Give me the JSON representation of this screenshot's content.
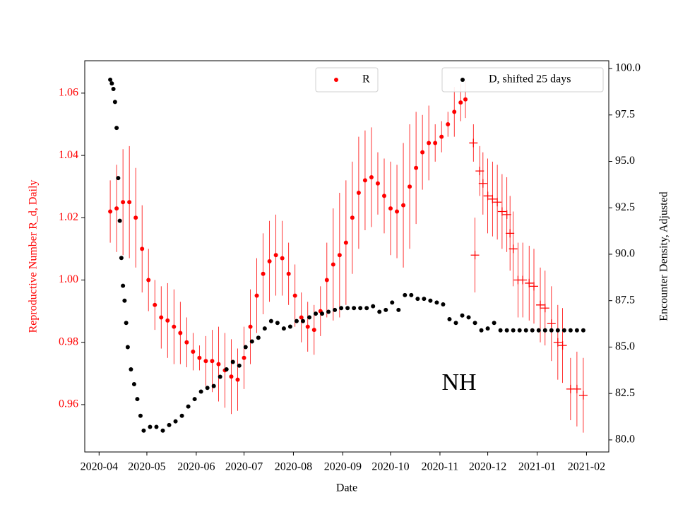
{
  "chart_data": {
    "type": "scatter",
    "xlabel": "Date",
    "ylabel": "Reproductive Number R_d, Daily",
    "y2label": "Encounter Density, Adjusted",
    "annotation": {
      "text": "NH",
      "x": "2020-11-13",
      "y": 0.9665
    },
    "xlim": [
      "2020-03-23",
      "2021-02-15"
    ],
    "xticks": [
      {
        "value": "2020-04-01",
        "label": "2020-04"
      },
      {
        "value": "2020-05-01",
        "label": "2020-05"
      },
      {
        "value": "2020-06-01",
        "label": "2020-06"
      },
      {
        "value": "2020-07-01",
        "label": "2020-07"
      },
      {
        "value": "2020-08-01",
        "label": "2020-08"
      },
      {
        "value": "2020-09-01",
        "label": "2020-09"
      },
      {
        "value": "2020-10-01",
        "label": "2020-10"
      },
      {
        "value": "2020-11-01",
        "label": "2020-11"
      },
      {
        "value": "2020-12-01",
        "label": "2020-12"
      },
      {
        "value": "2021-01-01",
        "label": "2021-01"
      },
      {
        "value": "2021-02-01",
        "label": "2021-02"
      }
    ],
    "ylim": [
      0.9448,
      1.0704
    ],
    "yticks": [
      0.96,
      0.98,
      {
        "value": 1,
        "label": "1.00"
      },
      1.02,
      1.04,
      1.06
    ],
    "ycolor": "red",
    "y2lim": [
      79.35,
      100.42
    ],
    "y2ticks": [
      {
        "value": 80,
        "label": "80.0"
      },
      82.5,
      {
        "value": 85,
        "label": "85.0"
      },
      87.5,
      {
        "value": 90,
        "label": "90.0"
      },
      92.5,
      {
        "value": 95,
        "label": "95.0"
      },
      97.5,
      {
        "value": 100,
        "label": "100.0"
      }
    ],
    "series": [
      {
        "name": "R",
        "color": "red",
        "marker": "o",
        "legend": "upper center",
        "x": [
          "2020-04-08",
          "2020-04-12",
          "2020-04-16",
          "2020-04-20",
          "2020-04-24",
          "2020-04-28",
          "2020-05-02",
          "2020-05-06",
          "2020-05-10",
          "2020-05-14",
          "2020-05-18",
          "2020-05-22",
          "2020-05-26",
          "2020-05-30",
          "2020-06-03",
          "2020-06-07",
          "2020-06-11",
          "2020-06-15",
          "2020-06-19",
          "2020-06-23",
          "2020-06-27",
          "2020-07-01",
          "2020-07-05",
          "2020-07-09",
          "2020-07-13",
          "2020-07-17",
          "2020-07-21",
          "2020-07-25",
          "2020-07-29",
          "2020-08-02",
          "2020-08-06",
          "2020-08-10",
          "2020-08-14",
          "2020-08-18",
          "2020-08-22",
          "2020-08-26",
          "2020-08-30",
          "2020-09-03",
          "2020-09-07",
          "2020-09-11",
          "2020-09-15",
          "2020-09-19",
          "2020-09-23",
          "2020-09-27",
          "2020-10-01",
          "2020-10-05",
          "2020-10-09",
          "2020-10-13",
          "2020-10-17",
          "2020-10-21",
          "2020-10-25",
          "2020-10-29",
          "2020-11-02",
          "2020-11-06",
          "2020-11-10",
          "2020-11-14",
          "2020-11-17"
        ],
        "values": [
          1.022,
          1.023,
          1.025,
          1.025,
          1.02,
          1.01,
          1.0,
          0.992,
          0.988,
          0.987,
          0.985,
          0.983,
          0.98,
          0.977,
          0.975,
          0.974,
          0.974,
          0.973,
          0.971,
          0.969,
          0.968,
          0.975,
          0.985,
          0.995,
          1.002,
          1.006,
          1.008,
          1.007,
          1.002,
          0.995,
          0.988,
          0.985,
          0.984,
          0.99,
          1.0,
          1.005,
          1.008,
          1.012,
          1.02,
          1.028,
          1.032,
          1.033,
          1.031,
          1.027,
          1.023,
          1.022,
          1.024,
          1.03,
          1.036,
          1.041,
          1.044,
          1.044,
          1.046,
          1.05,
          1.054,
          1.057,
          1.058
        ],
        "errors": [
          0.01,
          0.014,
          0.017,
          0.018,
          0.016,
          0.014,
          0.01,
          0.008,
          0.01,
          0.012,
          0.012,
          0.01,
          0.008,
          0.006,
          0.004,
          0.008,
          0.01,
          0.012,
          0.012,
          0.012,
          0.01,
          0.01,
          0.012,
          0.012,
          0.013,
          0.013,
          0.013,
          0.012,
          0.01,
          0.01,
          0.008,
          0.008,
          0.008,
          0.008,
          0.012,
          0.018,
          0.02,
          0.02,
          0.018,
          0.018,
          0.016,
          0.016,
          0.01,
          0.012,
          0.015,
          0.015,
          0.02,
          0.02,
          0.018,
          0.012,
          0.012,
          0.006,
          0.005,
          0.004,
          0.008,
          0.006,
          0.006
        ]
      },
      {
        "color": "red",
        "marker": "+",
        "x": [
          "2020-11-22",
          "2020-11-23",
          "2020-11-26",
          "2020-11-28",
          "2020-12-01",
          "2020-12-04",
          "2020-12-07",
          "2020-12-10",
          "2020-12-13",
          "2020-12-15",
          "2020-12-17",
          "2020-12-20",
          "2020-12-23",
          "2020-12-27",
          "2020-12-30",
          "2021-01-03",
          "2021-01-06",
          "2021-01-10",
          "2021-01-14",
          "2021-01-17",
          "2021-01-22",
          "2021-01-26",
          "2021-01-30"
        ],
        "values": [
          1.044,
          1.008,
          1.035,
          1.031,
          1.027,
          1.026,
          1.025,
          1.022,
          1.021,
          1.015,
          1.01,
          1.0,
          1.0,
          0.999,
          0.998,
          0.992,
          0.991,
          0.986,
          0.98,
          0.979,
          0.965,
          0.965,
          0.963
        ],
        "errors": [
          0.006,
          0.012,
          0.008,
          0.01,
          0.012,
          0.012,
          0.012,
          0.012,
          0.012,
          0.012,
          0.012,
          0.012,
          0.012,
          0.012,
          0.012,
          0.012,
          0.012,
          0.012,
          0.012,
          0.012,
          0.01,
          0.012,
          0.012
        ]
      },
      {
        "name": "D, shifted 25 days",
        "color": "black",
        "marker": "o",
        "axis": "y2",
        "legend": "upper right",
        "x": [
          "2020-04-08",
          "2020-04-09",
          "2020-04-10",
          "2020-04-11",
          "2020-04-12",
          "2020-04-13",
          "2020-04-14",
          "2020-04-15",
          "2020-04-16",
          "2020-04-17",
          "2020-04-18",
          "2020-04-19",
          "2020-04-21",
          "2020-04-23",
          "2020-04-25",
          "2020-04-27",
          "2020-04-29",
          "2020-05-03",
          "2020-05-07",
          "2020-05-11",
          "2020-05-15",
          "2020-05-19",
          "2020-05-23",
          "2020-05-27",
          "2020-05-31",
          "2020-06-04",
          "2020-06-08",
          "2020-06-12",
          "2020-06-16",
          "2020-06-20",
          "2020-06-24",
          "2020-06-28",
          "2020-07-02",
          "2020-07-06",
          "2020-07-10",
          "2020-07-14",
          "2020-07-18",
          "2020-07-22",
          "2020-07-26",
          "2020-07-30",
          "2020-08-03",
          "2020-08-07",
          "2020-08-11",
          "2020-08-15",
          "2020-08-19",
          "2020-08-23",
          "2020-08-27",
          "2020-08-31",
          "2020-09-04",
          "2020-09-08",
          "2020-09-12",
          "2020-09-16",
          "2020-09-20",
          "2020-09-24",
          "2020-09-28",
          "2020-10-02",
          "2020-10-06",
          "2020-10-10",
          "2020-10-14",
          "2020-10-18",
          "2020-10-22",
          "2020-10-26",
          "2020-10-30",
          "2020-11-03",
          "2020-11-07",
          "2020-11-11",
          "2020-11-15",
          "2020-11-19",
          "2020-11-23",
          "2020-11-27",
          "2020-12-01",
          "2020-12-05",
          "2020-12-09",
          "2020-12-13",
          "2020-12-17",
          "2020-12-21",
          "2020-12-25",
          "2020-12-29",
          "2021-01-02",
          "2021-01-06",
          "2021-01-10",
          "2021-01-14",
          "2021-01-18",
          "2021-01-22",
          "2021-01-26",
          "2021-01-30"
        ],
        "values": [
          99.4,
          99.2,
          98.9,
          98.2,
          96.8,
          94.1,
          91.8,
          89.8,
          88.3,
          87.5,
          86.3,
          85.0,
          83.8,
          83.0,
          82.2,
          81.3,
          80.5,
          80.7,
          80.7,
          80.5,
          80.8,
          81.0,
          81.3,
          81.8,
          82.2,
          82.6,
          82.8,
          82.9,
          83.4,
          83.8,
          84.2,
          84.0,
          85.0,
          85.3,
          85.5,
          86.0,
          86.4,
          86.3,
          86.0,
          86.1,
          86.4,
          86.4,
          86.6,
          86.8,
          86.8,
          86.9,
          87.0,
          87.1,
          87.1,
          87.1,
          87.1,
          87.1,
          87.2,
          86.9,
          87.0,
          87.4,
          87.0,
          87.8,
          87.8,
          87.6,
          87.6,
          87.5,
          87.4,
          87.3,
          86.5,
          86.3,
          86.7,
          86.6,
          86.3,
          85.9,
          86.0,
          86.3,
          85.9,
          85.9,
          85.9,
          85.9,
          85.9,
          85.9,
          85.9,
          85.9,
          85.9,
          85.9,
          85.9,
          85.9,
          85.9,
          85.9
        ]
      }
    ]
  }
}
